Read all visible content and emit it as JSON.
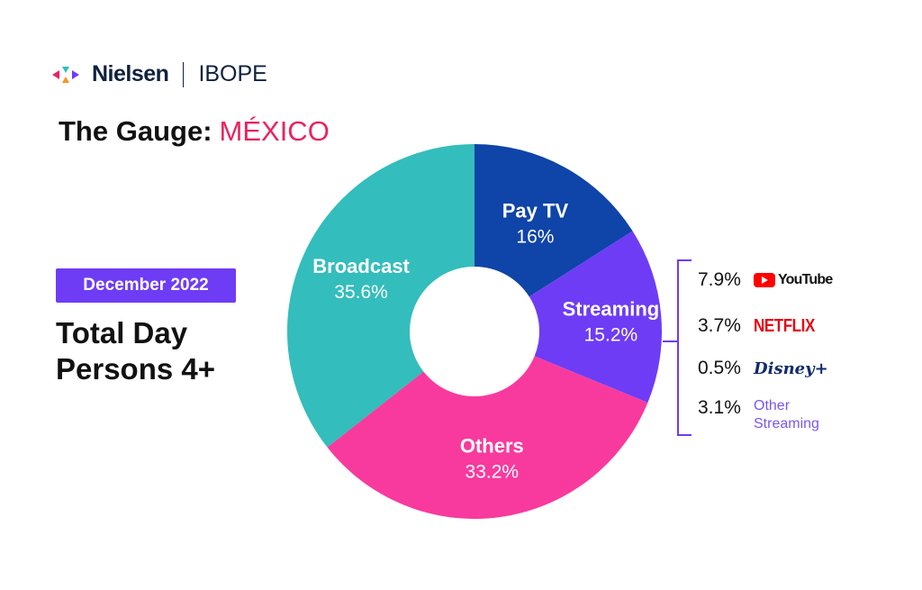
{
  "header": {
    "brand": "Nielsen",
    "partner": "IBOPE",
    "title": "The Gauge:",
    "country": "MÉXICO"
  },
  "badge": "December 2022",
  "subtitle": {
    "line1": "Total Day",
    "line2": "Persons 4+"
  },
  "colors": {
    "pay_tv": "#0f44a8",
    "streaming": "#6e3cf5",
    "others": "#f83a9e",
    "broadcast": "#33bdbc"
  },
  "chart_data": {
    "type": "pie",
    "title": "The Gauge: MÉXICO — December 2022, Total Day Persons 4+",
    "categories": [
      "Pay TV",
      "Streaming",
      "Others",
      "Broadcast"
    ],
    "values": [
      16,
      15.2,
      33.2,
      35.6
    ],
    "labels": [
      "16%",
      "15.2%",
      "33.2%",
      "35.6%"
    ],
    "streaming_breakdown": [
      {
        "name": "YouTube",
        "value": 7.9,
        "label": "7.9%"
      },
      {
        "name": "NETFLIX",
        "value": 3.7,
        "label": "3.7%"
      },
      {
        "name": "Disney+",
        "value": 0.5,
        "label": "0.5%"
      },
      {
        "name": "Other Streaming",
        "value": 3.1,
        "label": "3.1%"
      }
    ]
  }
}
